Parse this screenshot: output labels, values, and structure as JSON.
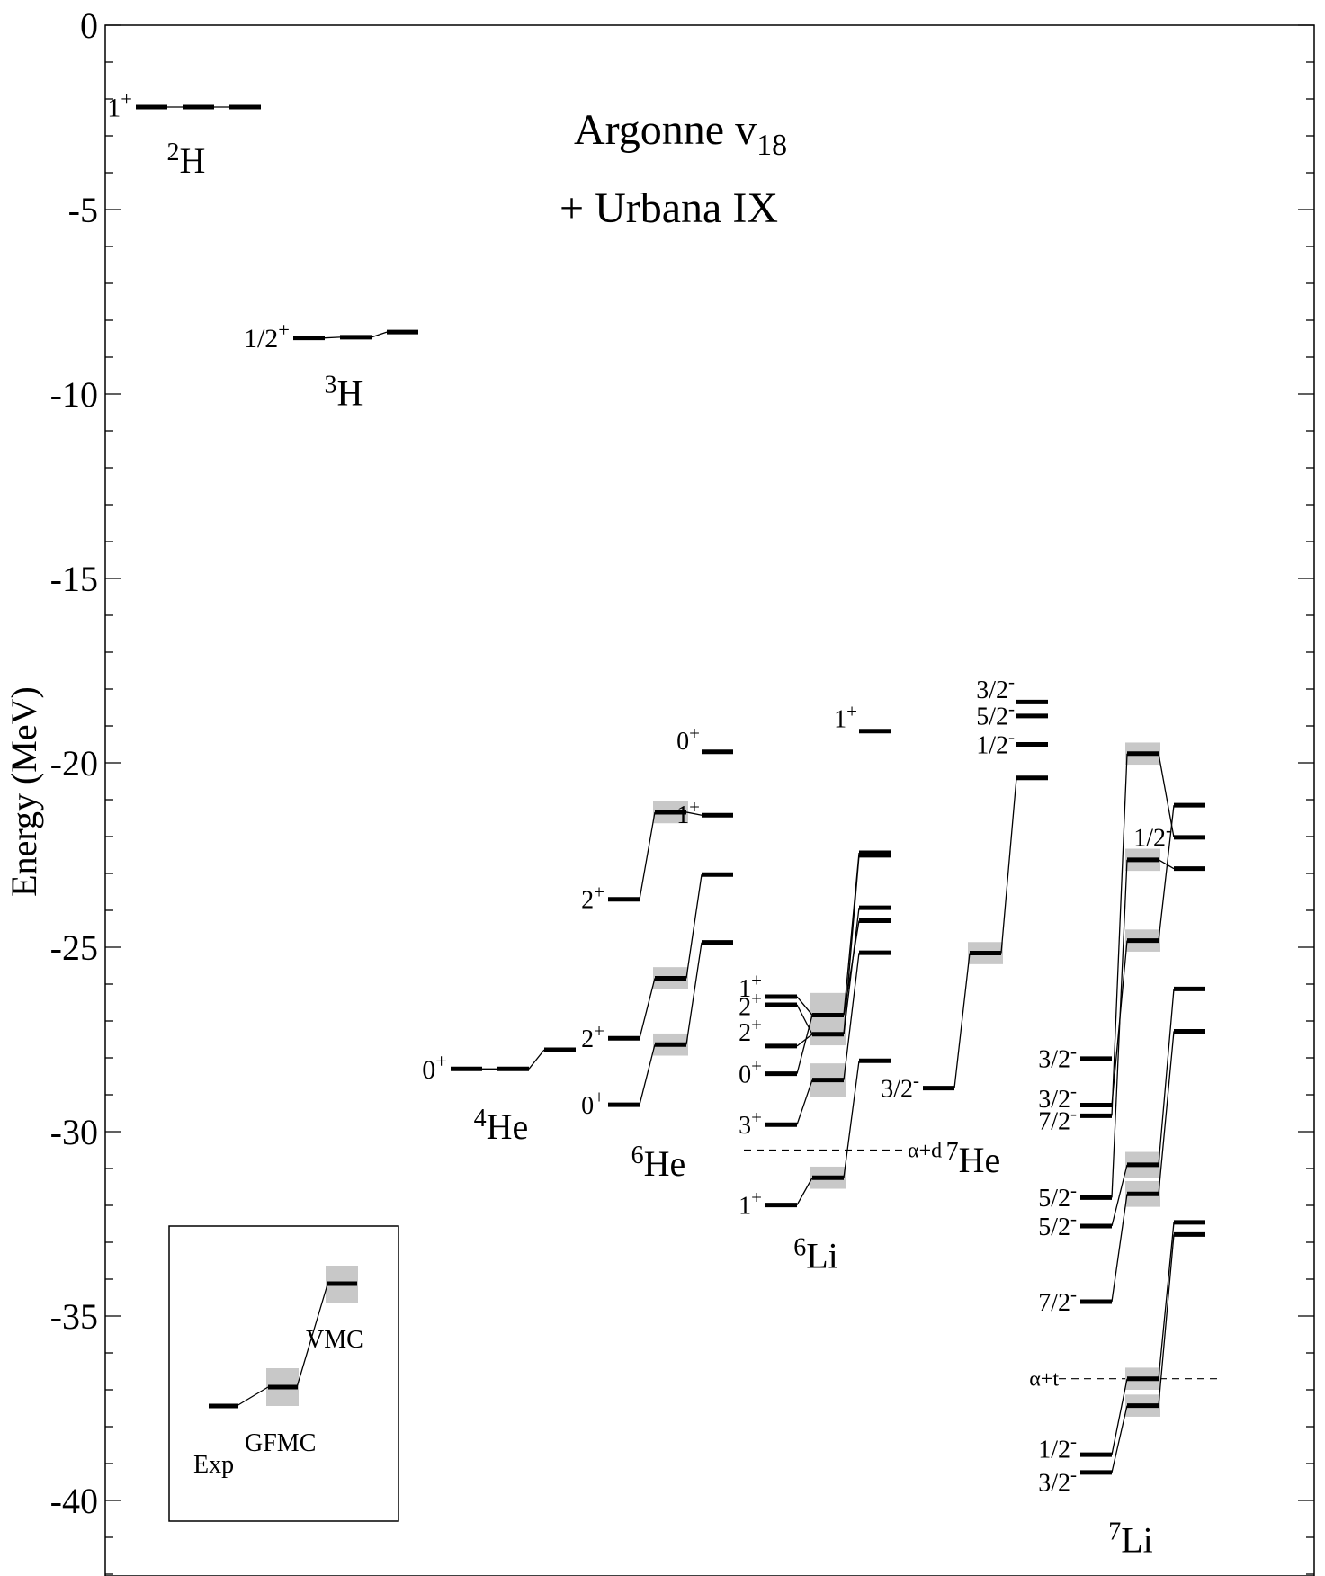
{
  "chart_data": {
    "type": "energy-level-diagram",
    "ylabel": "Energy (MeV)",
    "ylim": [
      -42,
      0
    ],
    "yticks": [
      0,
      -5,
      -10,
      -15,
      -20,
      -25,
      -30,
      -35,
      -40
    ],
    "minor_tick_step": 1,
    "title_line1": "Argonne v",
    "title_sub": "18",
    "title_line2": "+ Urbana IX",
    "nuclei": [
      {
        "id": "2H",
        "mass": "2",
        "symbol": "H",
        "x": 0.5,
        "label_y": -4.0,
        "levels": [
          {
            "j": "1",
            "p": "+",
            "exp": -2.22,
            "gfmc": -2.22,
            "vmc": -2.22,
            "label_y": -2.22
          }
        ],
        "links": [
          [
            0,
            0
          ]
        ]
      },
      {
        "id": "3H",
        "mass": "3",
        "symbol": "H",
        "x": 1.5,
        "label_y": -10.3,
        "levels": [
          {
            "j": "1/2",
            "p": "+",
            "exp": -8.48,
            "gfmc": -8.46,
            "vmc": -8.32,
            "label_y": -8.48
          }
        ],
        "links": [
          [
            0,
            0
          ]
        ]
      },
      {
        "id": "4He",
        "mass": "4",
        "symbol": "He",
        "x": 2.5,
        "label_y": -30.2,
        "levels": [
          {
            "j": "0",
            "p": "+",
            "exp": -28.3,
            "gfmc": -28.3,
            "vmc": -27.78,
            "label_y": -28.3
          }
        ],
        "links": [
          [
            0,
            0
          ]
        ]
      },
      {
        "id": "6He",
        "mass": "6",
        "symbol": "He",
        "x": 3.5,
        "label_y": -31.2,
        "exp": [
          {
            "e": -29.27,
            "j": "0",
            "p": "+",
            "label_y": -29.27
          },
          {
            "e": -27.47,
            "j": "2",
            "p": "+",
            "label_y": -27.47
          },
          {
            "e": -23.7,
            "j": "2",
            "p": "+",
            "label_y": -23.7
          }
        ],
        "gfmc": [
          {
            "e": -27.64,
            "band": 0.3
          },
          {
            "e": -25.84,
            "band": 0.3
          },
          {
            "e": -21.34,
            "band": 0.3
          }
        ],
        "vmc": [
          {
            "e": -24.87,
            "j": "",
            "p": ""
          },
          {
            "e": -23.03,
            "j": "",
            "p": ""
          },
          {
            "e": -21.42,
            "j": "1",
            "p": "+",
            "label_y": -21.4
          },
          {
            "e": -19.7,
            "j": "0",
            "p": "+",
            "label_y": -19.4
          }
        ],
        "links": [
          [
            0,
            0,
            0
          ],
          [
            1,
            1,
            1
          ],
          [
            2,
            2,
            2
          ]
        ]
      },
      {
        "id": "6Li",
        "mass": "6",
        "symbol": "Li",
        "x": 4.5,
        "label_y": -33.7,
        "exp": [
          {
            "e": -31.99,
            "j": "1",
            "p": "+",
            "label_y": -31.99
          },
          {
            "e": -29.81,
            "j": "3",
            "p": "+",
            "label_y": -29.81
          },
          {
            "e": -28.43,
            "j": "0",
            "p": "+",
            "label_y": -28.43
          },
          {
            "e": -27.68,
            "j": "2",
            "p": "+",
            "label_y": -27.3
          },
          {
            "e": -26.56,
            "j": "2",
            "p": "+",
            "label_y": -26.6
          },
          {
            "e": -26.34,
            "j": "1",
            "p": "+",
            "label_y": -26.1
          }
        ],
        "gfmc": [
          {
            "e": -31.25,
            "band": 0.3
          },
          {
            "e": -28.6,
            "band": 0.45
          },
          {
            "e": -27.36,
            "band": 0.3
          },
          {
            "e": -26.84,
            "band": 0.6
          }
        ],
        "vmc": [
          {
            "e": -28.08,
            "j": "",
            "p": ""
          },
          {
            "e": -25.15,
            "j": "",
            "p": ""
          },
          {
            "e": -24.28,
            "j": "",
            "p": ""
          },
          {
            "e": -23.93,
            "j": "",
            "p": ""
          },
          {
            "e": -22.51,
            "j": "",
            "p": ""
          },
          {
            "e": -22.44,
            "j": "",
            "p": ""
          },
          {
            "e": -19.14,
            "j": "1",
            "p": "+",
            "label_y": -18.8
          }
        ],
        "links": [
          [
            0,
            0,
            0
          ],
          [
            1,
            1,
            1
          ],
          [
            2,
            3,
            2
          ],
          [
            3,
            2,
            3
          ],
          [
            4,
            2,
            4
          ],
          [
            5,
            3,
            5
          ]
        ],
        "threshold": {
          "e": -30.5,
          "label": "α+d"
        }
      },
      {
        "id": "7He",
        "mass": "7",
        "symbol": "He",
        "x": 5.5,
        "label_y": -31.1,
        "exp": [
          {
            "e": -28.82,
            "j": "3/2",
            "p": "-",
            "label_y": -28.82
          }
        ],
        "gfmc": [
          {
            "e": -25.16,
            "band": 0.3
          }
        ],
        "vmc": [
          {
            "e": -20.41,
            "j": "",
            "p": ""
          },
          {
            "e": -19.5,
            "j": "1/2",
            "p": "-",
            "label_y": -19.5
          },
          {
            "e": -18.73,
            "j": "5/2",
            "p": "-",
            "label_y": -18.73
          },
          {
            "e": -18.35,
            "j": "3/2",
            "p": "-",
            "label_y": -18.0
          }
        ],
        "links": [
          [
            0,
            0,
            0
          ]
        ]
      },
      {
        "id": "7Li",
        "mass": "7",
        "symbol": "Li",
        "x": 6.5,
        "label_y": -41.4,
        "exp": [
          {
            "e": -39.24,
            "j": "3/2",
            "p": "-",
            "label_y": -39.5
          },
          {
            "e": -38.76,
            "j": "1/2",
            "p": "-",
            "label_y": -38.6
          },
          {
            "e": -34.61,
            "j": "7/2",
            "p": "-",
            "label_y": -34.61
          },
          {
            "e": -32.56,
            "j": "5/2",
            "p": "-",
            "label_y": -32.56
          },
          {
            "e": -31.79,
            "j": "5/2",
            "p": "-",
            "label_y": -31.79
          },
          {
            "e": -29.57,
            "j": "7/2",
            "p": "-",
            "label_y": -29.7
          },
          {
            "e": -29.28,
            "j": "3/2",
            "p": "-",
            "label_y": -29.1
          },
          {
            "e": -28.02,
            "j": "3/2",
            "p": "-",
            "label_y": -28.02
          }
        ],
        "gfmc": [
          {
            "e": -37.43,
            "band": 0.3
          },
          {
            "e": -36.7,
            "band": 0.3
          },
          {
            "e": -31.69,
            "band": 0.35
          },
          {
            "e": -30.9,
            "band": 0.35
          },
          {
            "e": -24.82,
            "band": 0.3
          },
          {
            "e": -22.63,
            "band": 0.3
          },
          {
            "e": -19.75,
            "band": 0.3
          }
        ],
        "vmc": [
          {
            "e": -32.79,
            "j": "",
            "p": ""
          },
          {
            "e": -32.46,
            "j": "",
            "p": ""
          },
          {
            "e": -27.28,
            "j": "",
            "p": ""
          },
          {
            "e": -26.13,
            "j": "",
            "p": ""
          },
          {
            "e": -22.87,
            "j": "",
            "p": ""
          },
          {
            "e": -22.02,
            "j": "1/2",
            "p": "-",
            "label_y": -22.02
          },
          {
            "e": -21.15,
            "j": "",
            "p": ""
          }
        ],
        "links": [
          [
            0,
            0,
            0
          ],
          [
            1,
            1,
            1
          ],
          [
            2,
            2,
            2
          ],
          [
            3,
            3,
            3
          ],
          [
            4,
            5,
            4
          ],
          [
            5,
            6,
            5
          ],
          [
            6,
            4,
            6
          ]
        ],
        "threshold": {
          "e": -36.7,
          "label": "α+t"
        }
      }
    ],
    "inset": {
      "exp_label": "Exp",
      "gfmc_label": "GFMC",
      "vmc_label": "VMC"
    }
  }
}
